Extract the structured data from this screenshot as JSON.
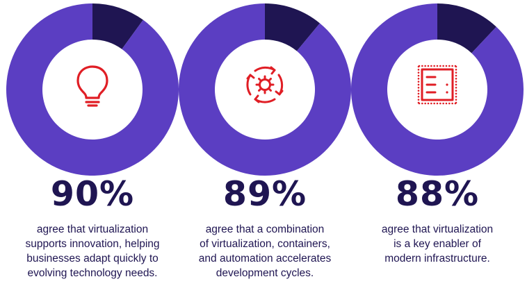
{
  "colors": {
    "ring": "#5b3ec2",
    "ring_remainder": "#1f1552",
    "icon": "#e01e25",
    "percent_text": "#1f1552",
    "caption_text": "#1f1552"
  },
  "chart_data": [
    {
      "type": "pie",
      "label": "90%",
      "values": [
        90,
        10
      ],
      "icon": "lightbulb-icon",
      "caption_lines": [
        "agree that virtualization",
        "supports innovation, helping",
        "businesses adapt quickly to",
        "evolving technology needs."
      ]
    },
    {
      "type": "pie",
      "label": "89%",
      "values": [
        89,
        11
      ],
      "icon": "automation-cycle-icon",
      "caption_lines": [
        "agree that a combination",
        "of virtualization, containers,",
        "and automation accelerates",
        "development cycles."
      ]
    },
    {
      "type": "pie",
      "label": "88%",
      "values": [
        88,
        12
      ],
      "icon": "server-rack-icon",
      "caption_lines": [
        "agree that virtualization",
        "is a key enabler of",
        "modern infrastructure."
      ]
    }
  ]
}
